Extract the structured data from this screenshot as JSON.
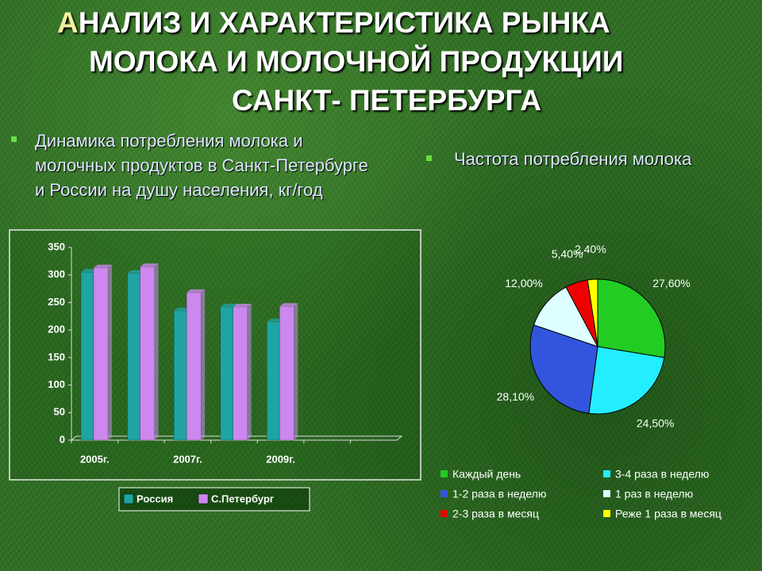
{
  "title": [
    "АНАЛИЗ И ХАРАКТЕРИСТИКА РЫНКА",
    "МОЛОКА И МОЛОЧНОЙ ПРОДУКЦИИ",
    "САНКТ- ПЕТЕРБУРГА"
  ],
  "chart_data": [
    {
      "type": "bar",
      "title": "Динамика потребления молока и молочных продуктов в Санкт-Петербурге и России на душу населения, кг/год",
      "categories": [
        "2005г.",
        null,
        "2007г.",
        null,
        "2009г.",
        null,
        null
      ],
      "series": [
        {
          "name": "Россия",
          "color": "#1fa3a3",
          "values": [
            305,
            303,
            235,
            242,
            215,
            null,
            null
          ]
        },
        {
          "name": "С.Петербург",
          "color": "#cc88ee",
          "values": [
            313,
            315,
            268,
            242,
            243,
            null,
            null
          ]
        }
      ],
      "ylim": [
        0,
        350
      ],
      "yticks": [
        0,
        50,
        100,
        150,
        200,
        250,
        300,
        350
      ]
    },
    {
      "type": "pie",
      "title": "Частота потребления молока",
      "categories": [
        "Каждый день",
        "3-4 раза в неделю",
        "1-2 раза в неделю",
        "1 раз в неделю",
        "2-3 раза в месяц",
        "Реже 1 раза в месяц"
      ],
      "values": [
        27.6,
        24.5,
        28.1,
        12.0,
        5.4,
        2.4
      ],
      "value_labels": [
        "27,60%",
        "24,50%",
        "28,10%",
        "12,00%",
        "5,40%",
        "2,40%"
      ],
      "colors": [
        "#22cc22",
        "#22eeff",
        "#3355dd",
        "#ddffff",
        "#ee0000",
        "#ffff00"
      ]
    }
  ]
}
